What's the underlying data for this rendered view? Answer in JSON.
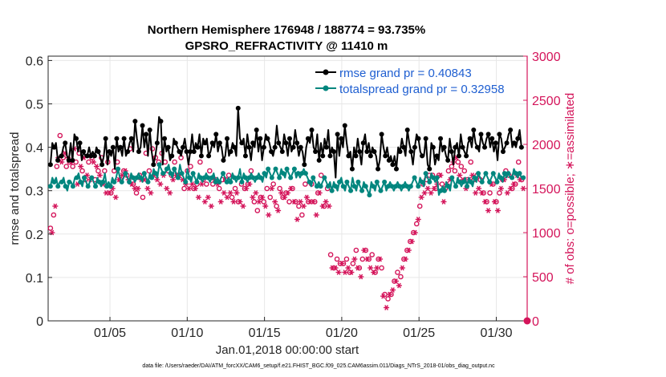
{
  "colors": {
    "rmse": "#000000",
    "spread": "#00867e",
    "obs": "#d4145a",
    "legend_text": "#1f5fd1",
    "grid": "#e7e7e7"
  },
  "chart_data": {
    "type": "line",
    "title_line1": "Northern Hemisphere 176948 / 188774 = 93.735%",
    "title_line2": "GPSRO_REFRACTIVITY @ 11410 m",
    "xlabel": "Jan.01,2018 00:00:00 start",
    "ylabel_left": "rmse and totalspread",
    "ylabel_right": "# of obs: o=possible; ∗=assimilated",
    "footnote": "data file: /Users/raeder/DAI/ATM_forcXX/CAM6_setup/f.e21.FHIST_BGC.f09_025.CAM6assim.011/Diags_NTrS_2018-01/obs_diag_output.nc",
    "xlim": [
      1.0,
      32.0
    ],
    "ylim_left": [
      0,
      0.61
    ],
    "ylim_right": [
      0,
      3000
    ],
    "x_ticks": [
      5,
      10,
      15,
      20,
      25,
      30
    ],
    "x_tick_labels": [
      "01/05",
      "01/10",
      "01/15",
      "01/20",
      "01/25",
      "01/30"
    ],
    "y_left_ticks": [
      0,
      0.1,
      0.2,
      0.3,
      0.4,
      0.5,
      0.6
    ],
    "y_left_tick_labels": [
      "0",
      "0.1",
      "0.2",
      "0.3",
      "0.4",
      "0.5",
      "0.6"
    ],
    "y_right_ticks": [
      0,
      500,
      1000,
      1500,
      2000,
      2500,
      3000
    ],
    "y_right_tick_labels": [
      "0",
      "500",
      "1000",
      "1500",
      "2000",
      "2500",
      "3000"
    ],
    "legend": {
      "position": "top-right",
      "entries": [
        "rmse grand pr = 0.40843",
        "totalspread grand pr = 0.32958"
      ]
    },
    "series": [
      {
        "name": "rmse",
        "axis": "left",
        "values": [
          0.36,
          0.41,
          0.4,
          0.41,
          0.37,
          0.38,
          0.38,
          0.4,
          0.41,
          0.38,
          0.37,
          0.41,
          0.37,
          0.43,
          0.42,
          0.39,
          0.41,
          0.37,
          0.39,
          0.38,
          0.38,
          0.4,
          0.38,
          0.39,
          0.38,
          0.4,
          0.39,
          0.38,
          0.36,
          0.38,
          0.42,
          0.36,
          0.39,
          0.38,
          0.4,
          0.35,
          0.42,
          0.39,
          0.4,
          0.38,
          0.42,
          0.38,
          0.39,
          0.41,
          0.42,
          0.39,
          0.46,
          0.42,
          0.39,
          0.4,
          0.45,
          0.4,
          0.43,
          0.38,
          0.44,
          0.39,
          0.36,
          0.38,
          0.41,
          0.47,
          0.46,
          0.36,
          0.42,
          0.39,
          0.4,
          0.37,
          0.38,
          0.42,
          0.41,
          0.4,
          0.39,
          0.38,
          0.4,
          0.42,
          0.39,
          0.36,
          0.39,
          0.43,
          0.39,
          0.41,
          0.4,
          0.43,
          0.38,
          0.42,
          0.41,
          0.42,
          0.38,
          0.39,
          0.41,
          0.4,
          0.43,
          0.39,
          0.41,
          0.4,
          0.37,
          0.38,
          0.42,
          0.38,
          0.39,
          0.41,
          0.4,
          0.38,
          0.49,
          0.42,
          0.41,
          0.42,
          0.38,
          0.43,
          0.4,
          0.37,
          0.41,
          0.4,
          0.44,
          0.39,
          0.42,
          0.37,
          0.4,
          0.43,
          0.42,
          0.41,
          0.39,
          0.38,
          0.4,
          0.45,
          0.41,
          0.4,
          0.39,
          0.43,
          0.41,
          0.38,
          0.42,
          0.39,
          0.4,
          0.44,
          0.41,
          0.38,
          0.4,
          0.39,
          0.36,
          0.4,
          0.42,
          0.41,
          0.44,
          0.4,
          0.39,
          0.43,
          0.37,
          0.41,
          0.38,
          0.42,
          0.4,
          0.44,
          0.38,
          0.4,
          0.39,
          0.33,
          0.43,
          0.38,
          0.42,
          0.4,
          0.45,
          0.41,
          0.38,
          0.39,
          0.35,
          0.4,
          0.38,
          0.42,
          0.39,
          0.36,
          0.41,
          0.43,
          0.39,
          0.41,
          0.38,
          0.4,
          0.39,
          0.38,
          0.35,
          0.37,
          0.43,
          0.4,
          0.38,
          0.4,
          0.37,
          0.38,
          0.36,
          0.38,
          0.35,
          0.4,
          0.39,
          0.42,
          0.4,
          0.38,
          0.44,
          0.41,
          0.39,
          0.36,
          0.4,
          0.43,
          0.42,
          0.39,
          0.38,
          0.38,
          0.42,
          0.36,
          0.35,
          0.41,
          0.4,
          0.36,
          0.38,
          0.37,
          0.42,
          0.39,
          0.4,
          0.38,
          0.37,
          0.42,
          0.39,
          0.36,
          0.4,
          0.41,
          0.38,
          0.43,
          0.4,
          0.39,
          0.38,
          0.41,
          0.42,
          0.4,
          0.44,
          0.41,
          0.4,
          0.39,
          0.43,
          0.41,
          0.4,
          0.42,
          0.43,
          0.4,
          0.42,
          0.39,
          0.41,
          0.37,
          0.43,
          0.42,
          0.39,
          0.4,
          0.41,
          0.43,
          0.44,
          0.4,
          0.41,
          0.4,
          0.42,
          0.44,
          0.4,
          0.4
        ]
      },
      {
        "name": "totalspread",
        "axis": "left",
        "values": [
          0.31,
          0.33,
          0.32,
          0.33,
          0.31,
          0.32,
          0.32,
          0.33,
          0.31,
          0.3,
          0.32,
          0.32,
          0.31,
          0.33,
          0.33,
          0.34,
          0.32,
          0.31,
          0.33,
          0.32,
          0.31,
          0.32,
          0.33,
          0.32,
          0.31,
          0.33,
          0.32,
          0.31,
          0.32,
          0.34,
          0.31,
          0.32,
          0.31,
          0.33,
          0.32,
          0.33,
          0.35,
          0.33,
          0.32,
          0.33,
          0.34,
          0.33,
          0.32,
          0.34,
          0.33,
          0.32,
          0.33,
          0.34,
          0.33,
          0.32,
          0.34,
          0.33,
          0.32,
          0.34,
          0.33,
          0.35,
          0.34,
          0.33,
          0.36,
          0.35,
          0.34,
          0.34,
          0.35,
          0.36,
          0.34,
          0.33,
          0.35,
          0.34,
          0.33,
          0.36,
          0.34,
          0.33,
          0.32,
          0.35,
          0.33,
          0.32,
          0.34,
          0.33,
          0.32,
          0.34,
          0.33,
          0.32,
          0.33,
          0.34,
          0.33,
          0.32,
          0.33,
          0.34,
          0.32,
          0.33,
          0.32,
          0.33,
          0.34,
          0.33,
          0.32,
          0.33,
          0.32,
          0.34,
          0.33,
          0.32,
          0.33,
          0.35,
          0.32,
          0.34,
          0.33,
          0.32,
          0.33,
          0.34,
          0.33,
          0.32,
          0.33,
          0.34,
          0.33,
          0.32,
          0.34,
          0.33,
          0.35,
          0.34,
          0.33,
          0.34,
          0.35,
          0.34,
          0.33,
          0.35,
          0.34,
          0.33,
          0.35,
          0.34,
          0.33,
          0.34,
          0.35,
          0.33,
          0.34,
          0.33,
          0.34,
          0.35,
          0.34,
          0.33,
          0.32,
          0.31,
          0.33,
          0.32,
          0.31,
          0.32,
          0.31,
          0.32,
          0.33,
          0.32,
          0.31,
          0.32,
          0.3,
          0.32,
          0.31,
          0.3,
          0.32,
          0.33,
          0.31,
          0.3,
          0.32,
          0.31,
          0.3,
          0.33,
          0.31,
          0.3,
          0.32,
          0.31,
          0.3,
          0.32,
          0.31,
          0.3,
          0.29,
          0.32,
          0.31,
          0.3,
          0.32,
          0.31,
          0.3,
          0.31,
          0.32,
          0.3,
          0.31,
          0.32,
          0.31,
          0.3,
          0.31,
          0.32,
          0.31,
          0.3,
          0.31,
          0.32,
          0.31,
          0.3,
          0.31,
          0.32,
          0.33,
          0.32,
          0.31,
          0.33,
          0.32,
          0.31,
          0.34,
          0.33,
          0.32,
          0.34,
          0.33,
          0.32,
          0.33,
          0.29,
          0.3,
          0.31,
          0.3,
          0.32,
          0.31,
          0.3,
          0.33,
          0.32,
          0.31,
          0.33,
          0.32,
          0.31,
          0.32,
          0.33,
          0.31,
          0.33,
          0.32,
          0.31,
          0.33,
          0.32,
          0.34,
          0.33,
          0.32,
          0.33,
          0.34,
          0.33,
          0.32,
          0.33,
          0.34,
          0.33,
          0.32,
          0.34,
          0.33,
          0.32,
          0.34,
          0.33,
          0.34,
          0.33,
          0.33,
          0.35,
          0.34,
          0.33,
          0.34,
          0.33,
          0.33
        ]
      },
      {
        "name": "possible",
        "axis": "right",
        "values": [
          1050,
          1100,
          1200,
          1400,
          1750,
          1950,
          2100,
          1900,
          1850,
          2000,
          1750,
          1950,
          1800,
          1900,
          1750,
          2050,
          1800,
          1650,
          1900,
          1850,
          1700,
          1950,
          1600,
          1750,
          1800,
          1700,
          1850,
          1900,
          1600,
          1850,
          1700,
          1750,
          1850,
          1650,
          1700,
          1550,
          1800,
          1550,
          1450,
          1600,
          1700,
          1500,
          1800,
          1700,
          1600,
          1750,
          1700,
          1800,
          1650,
          1700,
          1950,
          1650,
          1550,
          1600,
          1450,
          1600,
          1650,
          1700,
          1400,
          1700,
          1900,
          1600,
          1700,
          1550,
          1950,
          1750,
          1850,
          1700,
          1800,
          1650,
          1900,
          1750,
          1800,
          1600,
          1700,
          1550,
          1650,
          1700,
          1800,
          1750,
          1650,
          1750,
          1850,
          1700,
          1500,
          1650,
          1700,
          1600,
          1750,
          1650,
          1500,
          1600,
          1550,
          1500,
          1800,
          1650,
          1600,
          1450,
          1550,
          1500,
          1700,
          1400,
          1550,
          1700,
          1600,
          1650,
          1500,
          1450,
          1600,
          1550,
          1600,
          1500,
          1650,
          1550,
          1400,
          1450,
          1500,
          1550,
          1350,
          1450,
          1550,
          1400,
          1500,
          1600,
          1550,
          1650,
          1700,
          1500,
          1350,
          1550,
          1250,
          1450,
          1400,
          1500,
          1350,
          1400,
          1500,
          1300,
          1400,
          1600,
          1550,
          1450,
          1300,
          1350,
          1500,
          1550,
          1400,
          1500,
          1450,
          1550,
          1350,
          1600,
          1500,
          1450,
          1350,
          1250,
          1300,
          1450,
          1200,
          1400,
          1550,
          1500,
          1350,
          1450,
          1550,
          1450,
          1350,
          1300,
          1450,
          1550,
          1650,
          1400,
          1300,
          1450,
          1500,
          1400,
          750,
          650,
          600,
          650,
          700,
          600,
          650,
          700,
          650,
          600,
          700,
          650,
          550,
          600,
          650,
          750,
          800,
          650,
          600,
          550,
          700,
          850,
          800,
          750,
          700,
          650,
          750,
          600,
          550,
          650,
          700,
          750,
          600,
          350,
          300,
          200,
          250,
          350,
          300,
          400,
          450,
          500,
          550,
          450,
          500,
          650,
          700,
          750,
          800,
          850,
          900,
          950,
          1000,
          1050,
          1100,
          1200,
          1300,
          1450,
          1550,
          1500,
          1600,
          1550,
          1650,
          1500,
          1650,
          1550,
          1500,
          1600,
          1650,
          1700,
          1550,
          1400,
          1500,
          1600,
          1700,
          1650,
          1750,
          1850,
          1700,
          1900,
          1800,
          1700,
          1750,
          1650,
          1700,
          1550,
          1600,
          1650,
          1800,
          1700,
          1600,
          1500,
          1650,
          1550,
          1600,
          1500,
          1450,
          1400,
          1350,
          1300,
          1450,
          1600,
          1550,
          1400,
          1350,
          1300,
          1450,
          1550,
          1600,
          1650,
          1700,
          1500,
          1650,
          1550,
          1500,
          1600,
          1550,
          1700,
          1800,
          1650,
          1600,
          1550
        ]
      },
      {
        "name": "assimilated",
        "axis": "right",
        "values": [
          950,
          1000,
          1050,
          1300,
          1650,
          1850,
          2000,
          1800,
          1750,
          1900,
          1650,
          1850,
          1700,
          1800,
          1650,
          1950,
          1700,
          1550,
          1800,
          1750,
          1600,
          1850,
          1500,
          1650,
          1700,
          1600,
          1750,
          1800,
          1500,
          1750,
          1600,
          1650,
          1750,
          1550,
          1600,
          1450,
          1700,
          1450,
          1350,
          1500,
          1600,
          1400,
          1700,
          1600,
          1500,
          1650,
          1600,
          1700,
          1550,
          1600,
          1850,
          1550,
          1450,
          1500,
          1350,
          1500,
          1550,
          1600,
          1300,
          1600,
          1800,
          1500,
          1600,
          1450,
          1850,
          1650,
          1750,
          1600,
          1700,
          1550,
          1800,
          1650,
          1700,
          1500,
          1600,
          1450,
          1550,
          1600,
          1700,
          1650,
          1550,
          1650,
          1750,
          1600,
          1400,
          1550,
          1600,
          1500,
          1650,
          1550,
          1400,
          1500,
          1450,
          1400,
          1700,
          1550,
          1500,
          1350,
          1450,
          1400,
          1600,
          1300,
          1450,
          1600,
          1500,
          1550,
          1400,
          1350,
          1500,
          1450,
          1500,
          1400,
          1550,
          1450,
          1300,
          1350,
          1400,
          1450,
          1250,
          1350,
          1450,
          1300,
          1400,
          1500,
          1450,
          1550,
          1600,
          1400,
          1250,
          1450,
          1150,
          1350,
          1300,
          1400,
          1250,
          1300,
          1400,
          1200,
          1300,
          1500,
          1450,
          1350,
          1200,
          1250,
          1400,
          1450,
          1300,
          1400,
          1350,
          1450,
          1250,
          1500,
          1400,
          1350,
          1250,
          1150,
          1200,
          1350,
          1100,
          1300,
          1450,
          1400,
          1250,
          1350,
          1450,
          1350,
          1250,
          1200,
          1350,
          1450,
          1550,
          1300,
          1200,
          1350,
          1400,
          1300,
          650,
          600,
          550,
          600,
          650,
          550,
          600,
          650,
          600,
          550,
          650,
          600,
          500,
          550,
          600,
          700,
          750,
          600,
          550,
          500,
          650,
          800,
          750,
          700,
          650,
          600,
          700,
          550,
          500,
          600,
          650,
          700,
          550,
          280,
          250,
          150,
          200,
          300,
          250,
          350,
          400,
          450,
          500,
          400,
          450,
          600,
          650,
          700,
          750,
          800,
          850,
          900,
          950,
          1000,
          1050,
          1150,
          1250,
          1400,
          1500,
          1450,
          1550,
          1500,
          1600,
          1450,
          1600,
          1500,
          1450,
          1550,
          1600,
          1650,
          1500,
          1350,
          1450,
          1550,
          1650,
          1600,
          1700,
          1800,
          1650,
          1850,
          1750,
          1650,
          1700,
          1600,
          1650,
          1500,
          1550,
          1600,
          1750,
          1650,
          1550,
          1450,
          1600,
          1500,
          1550,
          1450,
          1400,
          1350,
          1300,
          1250,
          1400,
          1550,
          1500,
          1350,
          1300,
          1250,
          1400,
          1500,
          1550,
          1600,
          1650,
          1450,
          1600,
          1500,
          1450,
          1550,
          1500,
          1650,
          1750,
          1600,
          1550,
          1500
        ]
      }
    ]
  }
}
